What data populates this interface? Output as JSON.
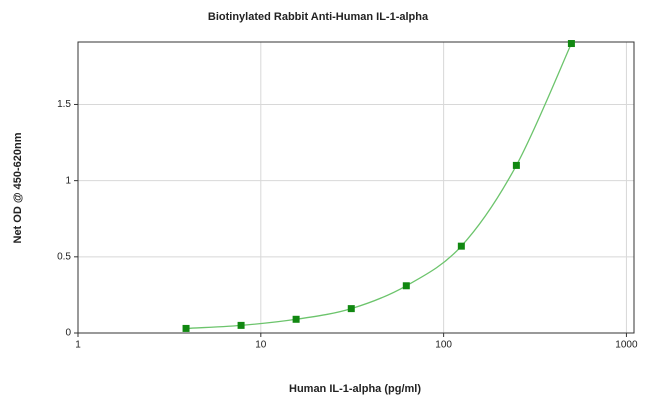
{
  "chart_data": {
    "type": "line",
    "title": "Biotinylated Rabbit Anti-Human IL-1-alpha",
    "x_label": "Human IL-1-alpha (pg/ml)",
    "y_label": "Net OD @ 450-620nm",
    "x": [
      3.9,
      7.8,
      15.6,
      31.25,
      62.5,
      125,
      250,
      500
    ],
    "series": [
      {
        "color": "#118811",
        "line_color": "#6cc46c",
        "values": [
          0.03,
          0.05,
          0.09,
          0.16,
          0.31,
          0.57,
          1.1,
          1.9
        ]
      }
    ],
    "xlim": [
      1,
      1100
    ],
    "xticks": [
      1,
      10,
      100,
      1000
    ],
    "x_log": true,
    "ylim": [
      0,
      1.91
    ],
    "yticks": [
      0,
      0.5,
      1,
      1.5
    ],
    "grid": true
  }
}
